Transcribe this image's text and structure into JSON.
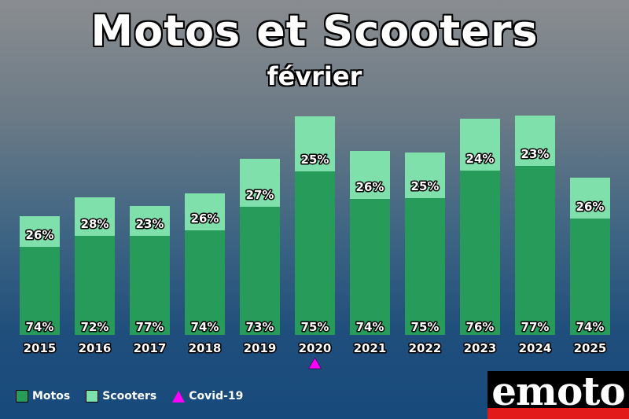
{
  "header": {
    "title": "Motos et Scooters",
    "subtitle": "février"
  },
  "chart_data": {
    "type": "bar",
    "stacked": true,
    "percent_labels": true,
    "categories": [
      "2015",
      "2016",
      "2017",
      "2018",
      "2019",
      "2020",
      "2021",
      "2022",
      "2023",
      "2024",
      "2025"
    ],
    "series": [
      {
        "name": "Motos",
        "color": "#269b5a",
        "values": [
          11.2,
          12.6,
          12.6,
          13.3,
          16.3,
          20.8,
          17.3,
          17.4,
          20.9,
          21.5,
          14.8
        ],
        "percent": [
          "74%",
          "72%",
          "77%",
          "74%",
          "73%",
          "75%",
          "74%",
          "75%",
          "76%",
          "77%",
          "74%"
        ]
      },
      {
        "name": "Scooters",
        "color": "#80e0ac",
        "values": [
          3.9,
          4.9,
          3.8,
          4.7,
          6.1,
          7.0,
          6.1,
          5.8,
          6.6,
          6.4,
          5.2
        ],
        "percent": [
          "26%",
          "28%",
          "23%",
          "26%",
          "27%",
          "25%",
          "26%",
          "25%",
          "24%",
          "23%",
          "26%"
        ]
      }
    ],
    "ylim": [
      0,
      30
    ],
    "grid": false,
    "legend_position": "bottom-left",
    "annotation": {
      "category": "2020",
      "marker": "triangle",
      "label": "Covid-19",
      "color": "#ff00ff"
    }
  },
  "legend": [
    {
      "label": "Motos",
      "color": "#269b5a"
    },
    {
      "label": "Scooters",
      "color": "#80e0ac"
    },
    {
      "label": "Covid-19",
      "color": "#ff00ff"
    }
  ],
  "logo": {
    "text": "emoto"
  }
}
